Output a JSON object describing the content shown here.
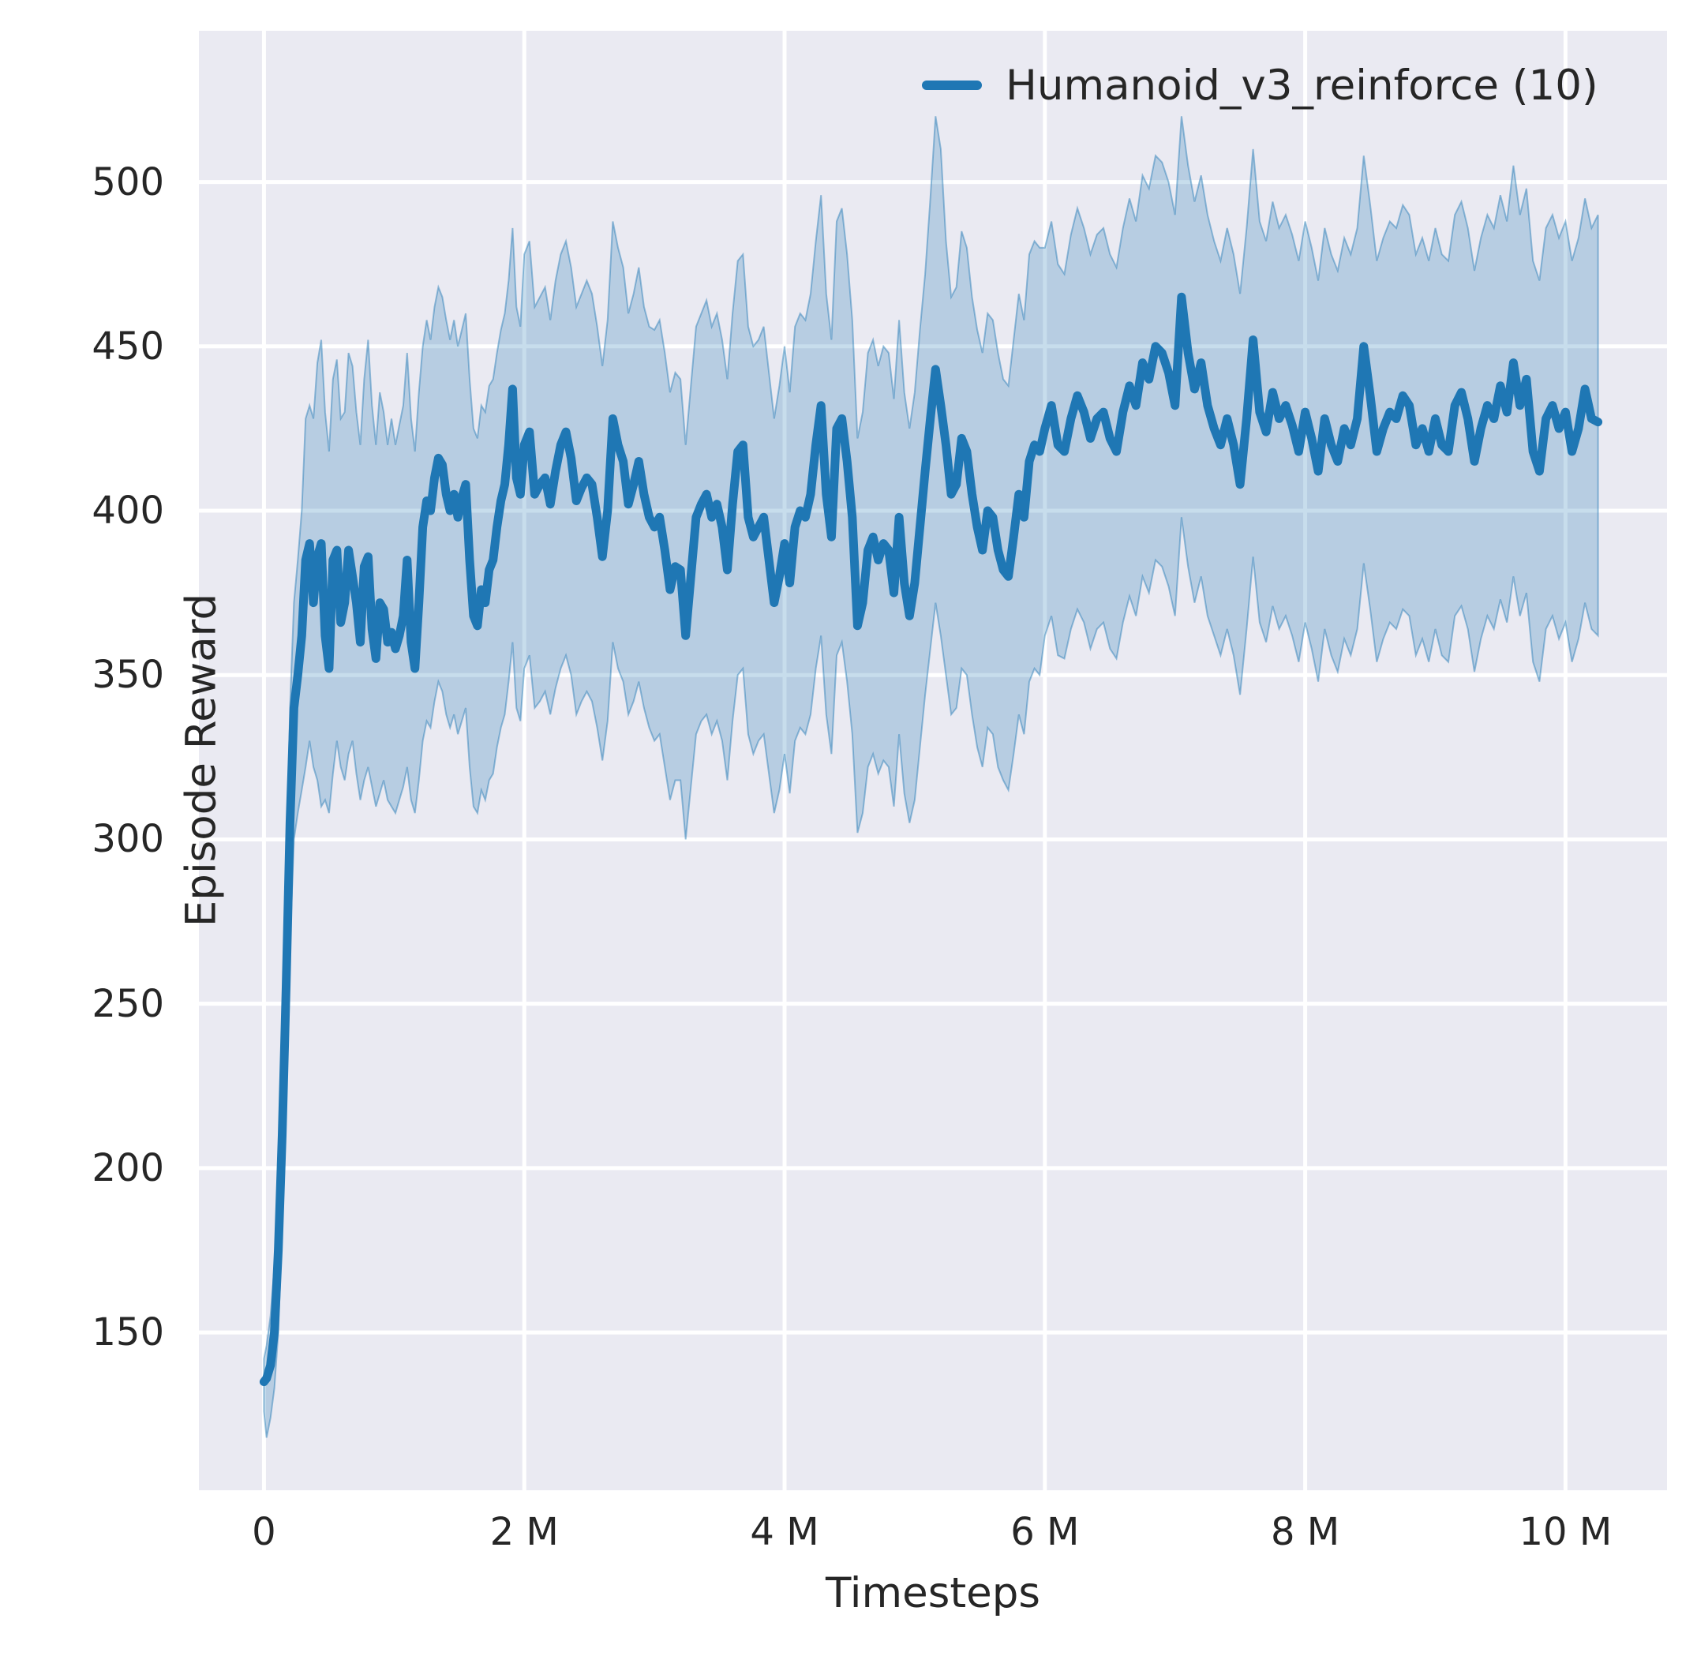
{
  "figure": {
    "background": "#ffffff"
  },
  "chart_data": {
    "type": "line",
    "title": "",
    "xlabel": "Timesteps",
    "ylabel": "Episode Reward",
    "x_unit": "millions",
    "grid": true,
    "plot_bg": "#eaeaf2",
    "grid_color": "#ffffff",
    "text_color": "#262626",
    "legend_position": "upper right",
    "legend": [
      {
        "label": "Humanoid_v3_reinforce (10)",
        "color": "#1f77b4"
      }
    ],
    "xlim": [
      -0.5,
      10.78
    ],
    "ylim": [
      102,
      546
    ],
    "x_ticks": [
      {
        "v": 0,
        "label": "0"
      },
      {
        "v": 2,
        "label": "2 M"
      },
      {
        "v": 4,
        "label": "4 M"
      },
      {
        "v": 6,
        "label": "6 M"
      },
      {
        "v": 8,
        "label": "8 M"
      },
      {
        "v": 10,
        "label": "10 M"
      }
    ],
    "y_ticks": [
      {
        "v": 150,
        "label": "150"
      },
      {
        "v": 200,
        "label": "200"
      },
      {
        "v": 250,
        "label": "250"
      },
      {
        "v": 300,
        "label": "300"
      },
      {
        "v": 350,
        "label": "350"
      },
      {
        "v": 400,
        "label": "400"
      },
      {
        "v": 450,
        "label": "450"
      },
      {
        "v": 500,
        "label": "500"
      }
    ],
    "series": [
      {
        "name": "Humanoid_v3_reinforce (10)",
        "color": "#1f77b4",
        "line_width": 11,
        "band_fill": "rgba(31,119,180,0.25)",
        "band_edge": "rgba(31,119,180,0.45)",
        "x": [
          0,
          0.02,
          0.05,
          0.08,
          0.11,
          0.14,
          0.17,
          0.2,
          0.23,
          0.26,
          0.29,
          0.32,
          0.35,
          0.38,
          0.41,
          0.44,
          0.47,
          0.5,
          0.53,
          0.56,
          0.59,
          0.62,
          0.65,
          0.68,
          0.71,
          0.74,
          0.77,
          0.8,
          0.83,
          0.86,
          0.89,
          0.92,
          0.95,
          0.98,
          1.01,
          1.04,
          1.07,
          1.1,
          1.13,
          1.16,
          1.19,
          1.22,
          1.25,
          1.28,
          1.31,
          1.34,
          1.37,
          1.4,
          1.43,
          1.46,
          1.49,
          1.52,
          1.55,
          1.58,
          1.61,
          1.64,
          1.67,
          1.7,
          1.73,
          1.76,
          1.79,
          1.82,
          1.85,
          1.88,
          1.91,
          1.94,
          1.97,
          2,
          2.04,
          2.08,
          2.12,
          2.16,
          2.2,
          2.24,
          2.28,
          2.32,
          2.36,
          2.4,
          2.44,
          2.48,
          2.52,
          2.56,
          2.6,
          2.64,
          2.68,
          2.72,
          2.76,
          2.8,
          2.84,
          2.88,
          2.92,
          2.96,
          3,
          3.04,
          3.08,
          3.12,
          3.16,
          3.2,
          3.24,
          3.28,
          3.32,
          3.36,
          3.4,
          3.44,
          3.48,
          3.52,
          3.56,
          3.6,
          3.64,
          3.68,
          3.72,
          3.76,
          3.8,
          3.84,
          3.88,
          3.92,
          3.96,
          4,
          4.04,
          4.08,
          4.12,
          4.16,
          4.2,
          4.24,
          4.28,
          4.32,
          4.36,
          4.4,
          4.44,
          4.48,
          4.52,
          4.56,
          4.6,
          4.64,
          4.68,
          4.72,
          4.76,
          4.8,
          4.84,
          4.88,
          4.92,
          4.96,
          5,
          5.04,
          5.08,
          5.12,
          5.16,
          5.2,
          5.24,
          5.28,
          5.32,
          5.36,
          5.4,
          5.44,
          5.48,
          5.52,
          5.56,
          5.6,
          5.64,
          5.68,
          5.72,
          5.76,
          5.8,
          5.84,
          5.88,
          5.92,
          5.96,
          6,
          6.05,
          6.1,
          6.15,
          6.2,
          6.25,
          6.3,
          6.35,
          6.4,
          6.45,
          6.5,
          6.55,
          6.6,
          6.65,
          6.7,
          6.75,
          6.8,
          6.85,
          6.9,
          6.95,
          7,
          7.05,
          7.1,
          7.15,
          7.2,
          7.25,
          7.3,
          7.35,
          7.4,
          7.45,
          7.5,
          7.55,
          7.6,
          7.65,
          7.7,
          7.75,
          7.8,
          7.85,
          7.9,
          7.95,
          8,
          8.05,
          8.1,
          8.15,
          8.2,
          8.25,
          8.3,
          8.35,
          8.4,
          8.45,
          8.5,
          8.55,
          8.6,
          8.65,
          8.7,
          8.75,
          8.8,
          8.85,
          8.9,
          8.95,
          9,
          9.05,
          9.1,
          9.15,
          9.2,
          9.25,
          9.3,
          9.35,
          9.4,
          9.45,
          9.5,
          9.55,
          9.6,
          9.65,
          9.7,
          9.75,
          9.8,
          9.85,
          9.9,
          9.95,
          10,
          10.05,
          10.1,
          10.15,
          10.2,
          10.25
        ],
        "mean": [
          135,
          136,
          140,
          150,
          175,
          210,
          255,
          305,
          340,
          350,
          362,
          385,
          390,
          372,
          386,
          390,
          362,
          352,
          385,
          388,
          366,
          372,
          388,
          380,
          372,
          360,
          383,
          386,
          364,
          355,
          372,
          370,
          360,
          363,
          358,
          362,
          368,
          385,
          360,
          352,
          372,
          395,
          403,
          400,
          410,
          416,
          414,
          405,
          400,
          405,
          398,
          404,
          408,
          385,
          368,
          365,
          376,
          372,
          382,
          385,
          395,
          403,
          408,
          420,
          437,
          410,
          405,
          420,
          424,
          405,
          408,
          410,
          402,
          412,
          420,
          424,
          416,
          403,
          407,
          410,
          408,
          398,
          386,
          400,
          428,
          420,
          415,
          402,
          408,
          415,
          405,
          398,
          395,
          398,
          388,
          376,
          383,
          382,
          362,
          380,
          398,
          402,
          405,
          398,
          402,
          395,
          382,
          402,
          418,
          420,
          398,
          392,
          395,
          398,
          385,
          372,
          380,
          390,
          378,
          395,
          400,
          398,
          405,
          420,
          432,
          405,
          392,
          425,
          428,
          415,
          398,
          365,
          372,
          388,
          392,
          385,
          390,
          388,
          375,
          398,
          378,
          368,
          378,
          395,
          412,
          428,
          443,
          432,
          420,
          405,
          408,
          422,
          418,
          405,
          395,
          388,
          400,
          398,
          388,
          382,
          380,
          392,
          405,
          398,
          415,
          420,
          418,
          425,
          432,
          420,
          418,
          428,
          435,
          430,
          422,
          428,
          430,
          422,
          418,
          430,
          438,
          432,
          445,
          440,
          450,
          448,
          442,
          432,
          465,
          448,
          437,
          445,
          432,
          425,
          420,
          428,
          420,
          408,
          428,
          452,
          430,
          424,
          436,
          428,
          432,
          426,
          418,
          430,
          422,
          412,
          428,
          420,
          415,
          425,
          420,
          428,
          450,
          435,
          418,
          425,
          430,
          428,
          435,
          432,
          420,
          425,
          418,
          428,
          420,
          418,
          432,
          436,
          428,
          415,
          425,
          432,
          428,
          438,
          430,
          445,
          432,
          440,
          418,
          412,
          428,
          432,
          425,
          430,
          418,
          425,
          437,
          428,
          427
        ],
        "lo": [
          126,
          118,
          124,
          133,
          150,
          182,
          222,
          268,
          300,
          308,
          315,
          322,
          330,
          322,
          318,
          310,
          312,
          308,
          320,
          330,
          322,
          318,
          326,
          330,
          320,
          312,
          318,
          322,
          316,
          310,
          314,
          318,
          312,
          310,
          308,
          312,
          316,
          322,
          312,
          308,
          318,
          330,
          336,
          334,
          342,
          348,
          345,
          338,
          334,
          338,
          332,
          336,
          340,
          322,
          310,
          308,
          315,
          312,
          318,
          320,
          328,
          334,
          338,
          348,
          360,
          340,
          336,
          352,
          356,
          340,
          342,
          345,
          338,
          346,
          352,
          356,
          350,
          338,
          342,
          345,
          342,
          334,
          324,
          336,
          360,
          352,
          348,
          338,
          342,
          348,
          340,
          334,
          330,
          332,
          322,
          312,
          318,
          318,
          300,
          316,
          332,
          336,
          338,
          332,
          336,
          330,
          318,
          336,
          350,
          352,
          332,
          326,
          330,
          332,
          320,
          308,
          315,
          326,
          314,
          330,
          334,
          332,
          338,
          352,
          362,
          338,
          326,
          356,
          360,
          348,
          332,
          302,
          308,
          322,
          326,
          320,
          324,
          322,
          310,
          332,
          314,
          305,
          312,
          328,
          344,
          358,
          372,
          362,
          350,
          338,
          340,
          352,
          350,
          338,
          328,
          322,
          334,
          332,
          322,
          318,
          315,
          326,
          338,
          332,
          348,
          352,
          350,
          362,
          368,
          356,
          355,
          364,
          370,
          366,
          358,
          364,
          366,
          358,
          355,
          366,
          374,
          368,
          380,
          375,
          385,
          383,
          377,
          368,
          398,
          383,
          372,
          380,
          368,
          362,
          356,
          364,
          356,
          344,
          364,
          386,
          366,
          360,
          371,
          364,
          368,
          362,
          354,
          366,
          358,
          348,
          364,
          356,
          351,
          361,
          356,
          364,
          384,
          370,
          354,
          361,
          366,
          364,
          370,
          368,
          356,
          361,
          354,
          364,
          356,
          354,
          368,
          371,
          364,
          351,
          361,
          368,
          364,
          373,
          366,
          380,
          368,
          375,
          354,
          348,
          364,
          368,
          361,
          366,
          354,
          361,
          372,
          364,
          362
        ],
        "hi": [
          142,
          146,
          155,
          170,
          200,
          238,
          288,
          340,
          372,
          385,
          400,
          428,
          432,
          428,
          445,
          452,
          430,
          418,
          440,
          446,
          428,
          430,
          448,
          444,
          430,
          420,
          440,
          452,
          432,
          420,
          436,
          430,
          420,
          428,
          420,
          426,
          432,
          448,
          428,
          418,
          436,
          450,
          458,
          452,
          462,
          468,
          465,
          458,
          452,
          458,
          450,
          455,
          460,
          440,
          425,
          422,
          432,
          430,
          438,
          440,
          448,
          455,
          460,
          470,
          486,
          462,
          456,
          478,
          482,
          462,
          465,
          468,
          458,
          470,
          478,
          482,
          474,
          462,
          466,
          470,
          466,
          456,
          444,
          458,
          488,
          480,
          474,
          460,
          466,
          474,
          462,
          456,
          455,
          458,
          448,
          436,
          442,
          440,
          420,
          438,
          456,
          460,
          464,
          456,
          460,
          452,
          440,
          460,
          476,
          478,
          456,
          450,
          452,
          456,
          442,
          428,
          438,
          450,
          436,
          456,
          460,
          458,
          466,
          482,
          496,
          466,
          452,
          488,
          492,
          478,
          458,
          422,
          430,
          448,
          452,
          444,
          450,
          448,
          434,
          458,
          436,
          425,
          436,
          455,
          472,
          495,
          520,
          510,
          482,
          465,
          468,
          485,
          480,
          465,
          455,
          448,
          460,
          458,
          448,
          440,
          438,
          452,
          466,
          458,
          478,
          482,
          480,
          480,
          488,
          475,
          472,
          484,
          492,
          486,
          478,
          484,
          486,
          478,
          474,
          486,
          495,
          488,
          502,
          498,
          508,
          506,
          500,
          490,
          520,
          505,
          494,
          502,
          490,
          482,
          476,
          486,
          478,
          466,
          486,
          510,
          488,
          482,
          494,
          486,
          490,
          484,
          476,
          488,
          480,
          470,
          486,
          478,
          473,
          483,
          478,
          486,
          508,
          493,
          476,
          483,
          488,
          486,
          493,
          490,
          478,
          483,
          476,
          486,
          478,
          476,
          490,
          494,
          486,
          473,
          483,
          490,
          486,
          496,
          488,
          505,
          490,
          498,
          476,
          470,
          486,
          490,
          483,
          488,
          476,
          483,
          495,
          486,
          490
        ]
      }
    ]
  }
}
